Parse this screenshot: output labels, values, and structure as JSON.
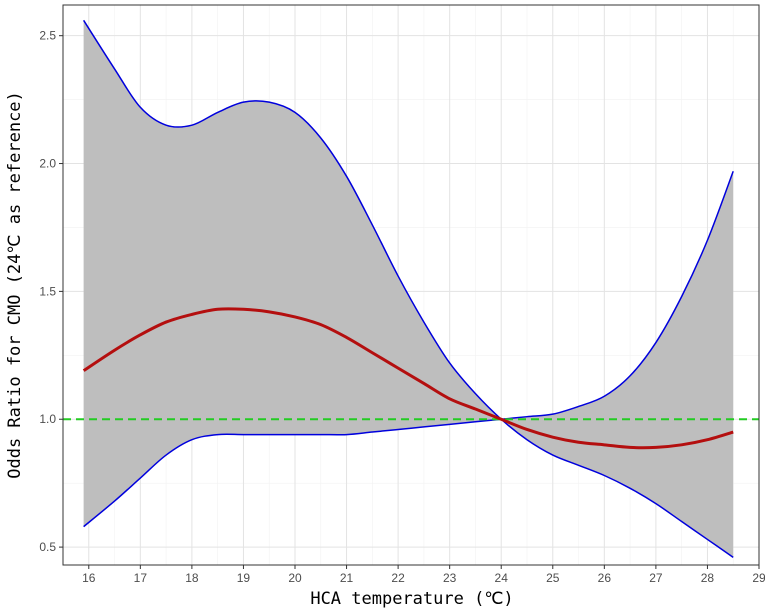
{
  "chart_data": {
    "type": "line",
    "title": "",
    "xlabel": "HCA temperature (℃)",
    "ylabel": "Odds Ratio for CMO (24℃ as reference)",
    "xlim": [
      15.5,
      29.0
    ],
    "ylim": [
      0.43,
      2.62
    ],
    "x_ticks": [
      "16",
      "17",
      "18",
      "19",
      "20",
      "21",
      "22",
      "23",
      "24",
      "25",
      "26",
      "27",
      "28",
      "29"
    ],
    "y_ticks": [
      "0.5",
      "1.0",
      "1.5",
      "2.0",
      "2.5"
    ],
    "grid": true,
    "reference_line": {
      "y": 1.0,
      "style": "dashed",
      "color": "#22cc22"
    },
    "x": [
      15.9,
      16.5,
      17,
      17.5,
      18,
      18.5,
      19,
      19.5,
      20,
      20.5,
      21,
      21.5,
      22,
      22.5,
      23,
      23.5,
      24,
      24.5,
      25,
      25.5,
      26,
      26.5,
      27,
      27.5,
      28,
      28.5
    ],
    "series": [
      {
        "role": "estimate",
        "color": "#b40f0f",
        "values": [
          1.19,
          1.27,
          1.33,
          1.38,
          1.41,
          1.43,
          1.43,
          1.42,
          1.4,
          1.37,
          1.32,
          1.26,
          1.2,
          1.14,
          1.08,
          1.04,
          1.0,
          0.96,
          0.93,
          0.91,
          0.9,
          0.89,
          0.89,
          0.9,
          0.92,
          0.95
        ]
      },
      {
        "role": "upper",
        "color": "#0000dd",
        "values": [
          2.56,
          2.37,
          2.22,
          2.15,
          2.15,
          2.2,
          2.24,
          2.24,
          2.2,
          2.1,
          1.95,
          1.76,
          1.56,
          1.38,
          1.22,
          1.1,
          1.0,
          0.92,
          0.86,
          0.82,
          0.78,
          0.73,
          0.67,
          0.6,
          0.53,
          0.46
        ]
      },
      {
        "role": "lower",
        "color": "#0000dd",
        "values": [
          0.58,
          0.68,
          0.77,
          0.86,
          0.92,
          0.94,
          0.94,
          0.94,
          0.94,
          0.94,
          0.94,
          0.95,
          0.96,
          0.97,
          0.98,
          0.99,
          1.0,
          1.01,
          1.02,
          1.05,
          1.09,
          1.17,
          1.3,
          1.48,
          1.7,
          1.97
        ]
      }
    ],
    "band_color": "#bebebe"
  }
}
